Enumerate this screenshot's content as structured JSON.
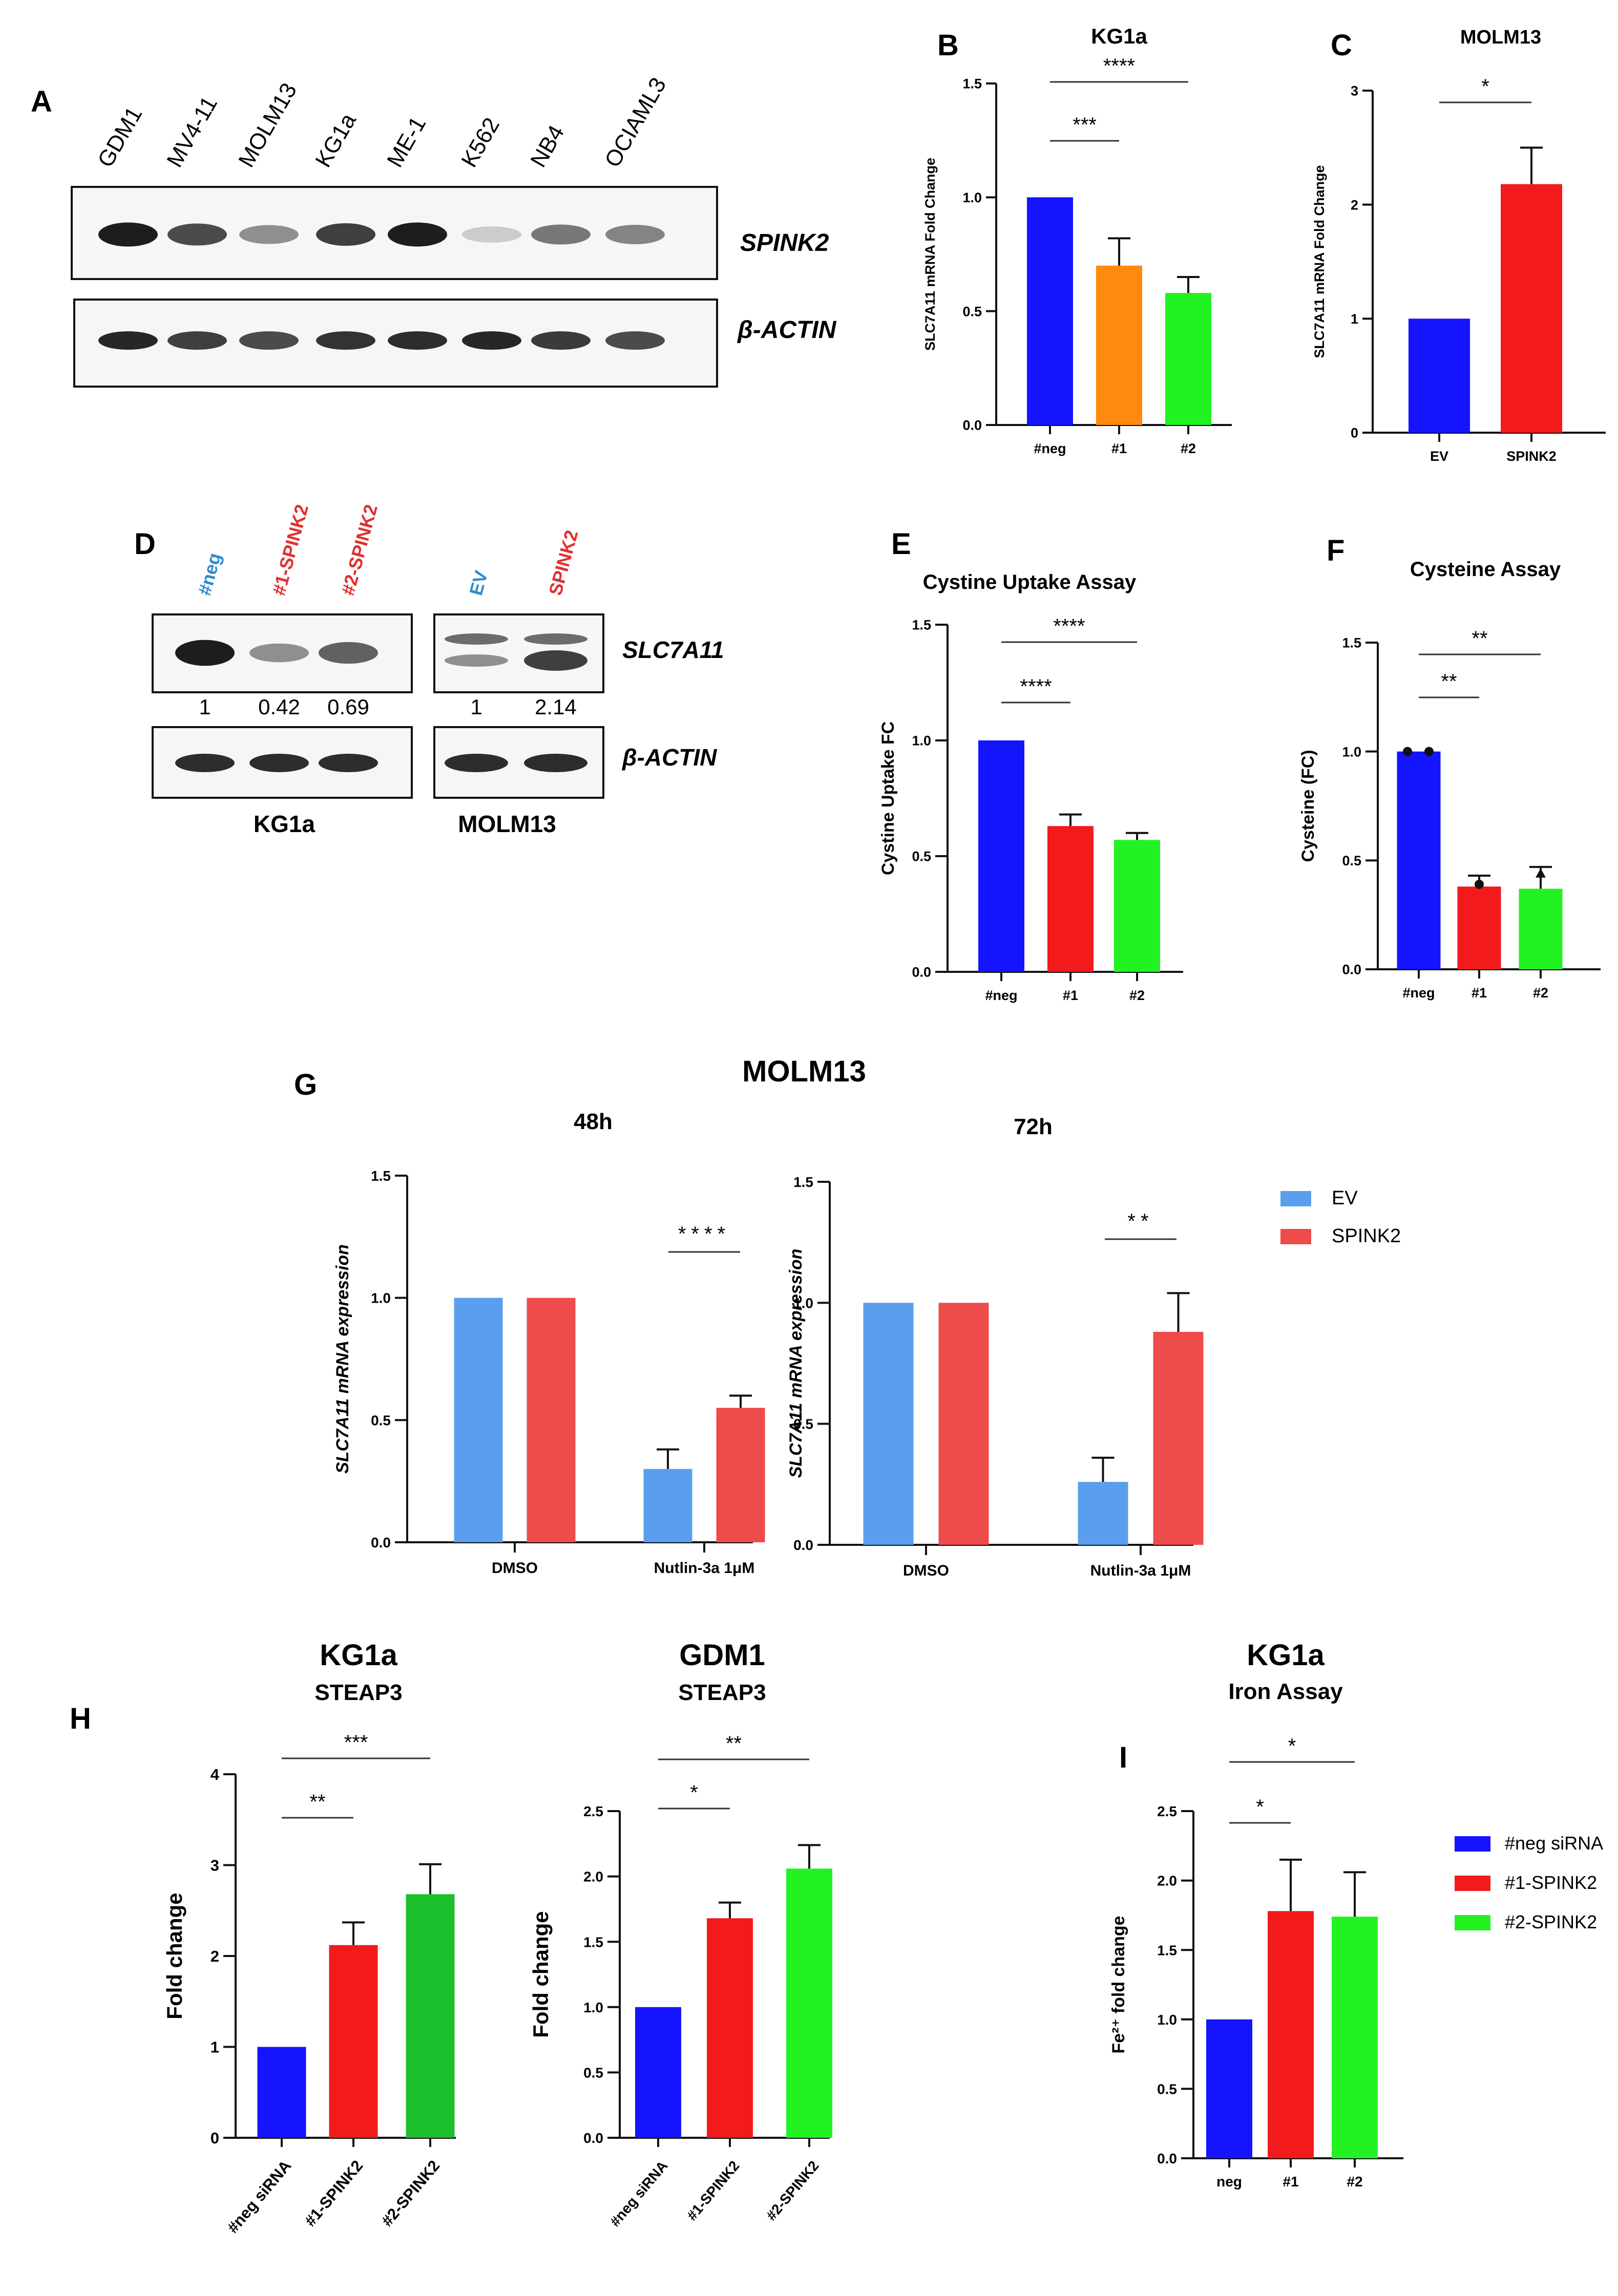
{
  "colors": {
    "blue": "#1414FF",
    "red": "#F21A1A",
    "orange": "#FF8A0F",
    "green": "#22F222",
    "dgreen": "#1CBF2C",
    "ltblue": "#5A9FEE",
    "sred": "#EE4B4B",
    "ink": "#111111"
  },
  "panels": {
    "A": "A",
    "B": "B",
    "C": "C",
    "D": "D",
    "E": "E",
    "F": "F",
    "G": "G",
    "H": "H",
    "I": "I"
  },
  "blotA": {
    "lanes": [
      "GDM1",
      "MV4-11",
      "MOLM13",
      "KG1a",
      "ME-1",
      "K562",
      "NB4",
      "OCIAML3"
    ],
    "label1": "SPINK2",
    "label2": "β-ACTIN"
  },
  "blotD": {
    "lanesKG1a": [
      "#neg",
      "#1-SPINK2",
      "#2-SPINK2"
    ],
    "lanesMOLM": [
      "EV",
      "SPINK2"
    ],
    "quantKG1a": [
      "1",
      "0.42",
      "0.69"
    ],
    "quantMOLM": [
      "1",
      "2.14"
    ],
    "label1": "SLC7A11",
    "label2": "β-ACTIN",
    "caption1": "KG1a",
    "caption2": "MOLM13"
  },
  "g_title": "MOLM13",
  "g_legend": [
    "EV",
    "SPINK2"
  ],
  "hi_legend": [
    "#neg siRNA",
    "#1-SPINK2",
    "#2-SPINK2"
  ],
  "chart_data": [
    {
      "id": "B",
      "type": "bar",
      "title": "KG1a",
      "categories": [
        "#neg",
        "#1",
        "#2"
      ],
      "values": [
        1.0,
        0.7,
        0.58
      ],
      "errors": [
        0,
        0.12,
        0.07
      ],
      "ylabel": "SLC7A11 mRNA Fold Change",
      "ylim": [
        0,
        1.5
      ],
      "yticks": [
        "0.0",
        "0.5",
        "1.0",
        "1.5"
      ],
      "bar_colors": [
        "blue",
        "orange",
        "green"
      ],
      "sig": [
        {
          "text": "***",
          "from": 0,
          "to": 1
        },
        {
          "text": "****",
          "from": 0,
          "to": 2
        }
      ]
    },
    {
      "id": "C",
      "type": "bar",
      "title": "MOLM13",
      "categories": [
        "EV",
        "SPINK2"
      ],
      "values": [
        1.0,
        2.18
      ],
      "errors": [
        0,
        0.32
      ],
      "ylabel": "SLC7A11 mRNA Fold Change",
      "ylim": [
        0,
        3
      ],
      "yticks": [
        "0",
        "1",
        "2",
        "3"
      ],
      "bar_colors": [
        "blue",
        "red"
      ],
      "sig": [
        {
          "text": "*",
          "from": 0,
          "to": 1
        }
      ]
    },
    {
      "id": "E",
      "type": "bar",
      "title": "Cystine Uptake Assay",
      "categories": [
        "#neg",
        "#1",
        "#2"
      ],
      "values": [
        1.0,
        0.63,
        0.57
      ],
      "errors": [
        0,
        0.05,
        0.03
      ],
      "ylabel": "Cystine Uptake FC",
      "ylim": [
        0,
        1.5
      ],
      "yticks": [
        "0.0",
        "0.5",
        "1.0",
        "1.5"
      ],
      "bar_colors": [
        "blue",
        "red",
        "green"
      ],
      "sig": [
        {
          "text": "****",
          "from": 0,
          "to": 1
        },
        {
          "text": "****",
          "from": 0,
          "to": 2
        }
      ]
    },
    {
      "id": "F",
      "type": "bar",
      "title": "Cysteine Assay",
      "categories": [
        "#neg",
        "#1",
        "#2"
      ],
      "values": [
        1.0,
        0.38,
        0.37
      ],
      "errors": [
        0,
        0.05,
        0.1
      ],
      "ylabel": "Cysteine (FC)",
      "ylim": [
        0,
        1.5
      ],
      "yticks": [
        "0.0",
        "0.5",
        "1.0",
        "1.5"
      ],
      "bar_colors": [
        "blue",
        "red",
        "green"
      ],
      "sig": [
        {
          "text": "**",
          "from": 0,
          "to": 1
        },
        {
          "text": "**",
          "from": 0,
          "to": 2
        }
      ]
    },
    {
      "id": "G48",
      "type": "bar",
      "title": "48h",
      "categories": [
        "DMSO",
        "Nutlin-3a 1μM"
      ],
      "series": [
        {
          "name": "EV",
          "values": [
            1.0,
            0.3
          ],
          "errors": [
            0,
            0.08
          ],
          "color": "ltblue"
        },
        {
          "name": "SPINK2",
          "values": [
            1.0,
            0.55
          ],
          "errors": [
            0,
            0.05
          ],
          "color": "sred"
        }
      ],
      "ylabel": "SLC7A11 mRNA expression",
      "ylim": [
        0,
        1.5
      ],
      "yticks": [
        "0.0",
        "0.5",
        "1.0",
        "1.5"
      ],
      "sig": [
        {
          "text": "****",
          "group": 1
        }
      ]
    },
    {
      "id": "G72",
      "type": "bar",
      "title": "72h",
      "categories": [
        "DMSO",
        "Nutlin-3a 1μM"
      ],
      "series": [
        {
          "name": "EV",
          "values": [
            1.0,
            0.26
          ],
          "errors": [
            0,
            0.1
          ],
          "color": "ltblue"
        },
        {
          "name": "SPINK2",
          "values": [
            1.0,
            0.88
          ],
          "errors": [
            0,
            0.16
          ],
          "color": "sred"
        }
      ],
      "ylabel": "SLC7A11 mRNA expression",
      "ylim": [
        0,
        1.5
      ],
      "yticks": [
        "0.0",
        "0.5",
        "1.0",
        "1.5"
      ],
      "sig": [
        {
          "text": "**",
          "group": 1
        }
      ]
    },
    {
      "id": "H1",
      "type": "bar",
      "title": "KG1a",
      "subtitle": "STEAP3",
      "categories": [
        "#neg siRNA",
        "#1-SPINK2",
        "#2-SPINK2"
      ],
      "values": [
        1.0,
        2.12,
        2.68
      ],
      "errors": [
        0,
        0.25,
        0.33
      ],
      "ylabel": "Fold change",
      "ylim": [
        0,
        4
      ],
      "yticks": [
        "0",
        "1",
        "2",
        "3",
        "4"
      ],
      "bar_colors": [
        "blue",
        "red",
        "dgreen"
      ],
      "sig": [
        {
          "text": "**",
          "from": 0,
          "to": 1
        },
        {
          "text": "***",
          "from": 0,
          "to": 2
        }
      ]
    },
    {
      "id": "H2",
      "type": "bar",
      "title": "GDM1",
      "subtitle": "STEAP3",
      "categories": [
        "#neg siRNA",
        "#1-SPINK2",
        "#2-SPINK2"
      ],
      "values": [
        1.0,
        1.68,
        2.06
      ],
      "errors": [
        0,
        0.12,
        0.18
      ],
      "ylabel": "Fold change",
      "ylim": [
        0,
        2.5
      ],
      "yticks": [
        "0.0",
        "0.5",
        "1.0",
        "1.5",
        "2.0",
        "2.5"
      ],
      "bar_colors": [
        "blue",
        "red",
        "green"
      ],
      "sig": [
        {
          "text": "*",
          "from": 0,
          "to": 1
        },
        {
          "text": "**",
          "from": 0,
          "to": 2
        }
      ]
    },
    {
      "id": "I",
      "type": "bar",
      "title": "KG1a",
      "subtitle": "Iron Assay",
      "categories": [
        "neg",
        "#1",
        "#2"
      ],
      "values": [
        1.0,
        1.78,
        1.74
      ],
      "errors": [
        0,
        0.37,
        0.32
      ],
      "ylabel": "Fe²⁺ fold change",
      "ylim": [
        0,
        2.5
      ],
      "yticks": [
        "0.0",
        "0.5",
        "1.0",
        "1.5",
        "2.0",
        "2.5"
      ],
      "bar_colors": [
        "blue",
        "red",
        "green"
      ],
      "sig": [
        {
          "text": "*",
          "from": 0,
          "to": 1
        },
        {
          "text": "*",
          "from": 0,
          "to": 2
        }
      ]
    }
  ]
}
